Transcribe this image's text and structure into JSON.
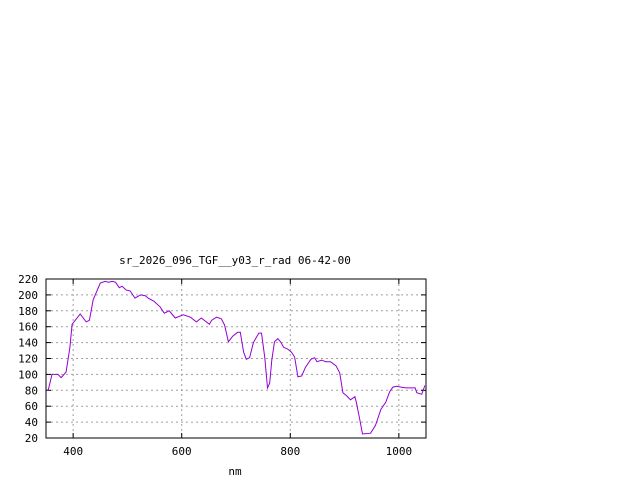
{
  "chart_data": {
    "type": "line",
    "title": "sr_2026_096_TGF__y03_r_rad 06-42-00",
    "xlabel": "nm",
    "ylabel": "",
    "xlim": [
      350,
      1050
    ],
    "ylim": [
      20,
      220
    ],
    "xticks": [
      400,
      600,
      800,
      1000
    ],
    "yticks": [
      20,
      40,
      60,
      80,
      100,
      120,
      140,
      160,
      180,
      200,
      220
    ],
    "grid": true,
    "line_color": "#9400d3",
    "series": [
      {
        "x": [
          350,
          354,
          361,
          372,
          378,
          387,
          394,
          398,
          413,
          424,
          430,
          437,
          450,
          459,
          465,
          472,
          478,
          485,
          490,
          498,
          505,
          514,
          524,
          533,
          538,
          549,
          560,
          568,
          577,
          588,
          603,
          616,
          627,
          636,
          651,
          655,
          664,
          673,
          679,
          686,
          694,
          703,
          708,
          714,
          719,
          725,
          732,
          742,
          747,
          753,
          758,
          762,
          766,
          771,
          777,
          782,
          788,
          795,
          802,
          808,
          814,
          821,
          828,
          838,
          845,
          849,
          858,
          865,
          874,
          884,
          891,
          897,
          904,
          911,
          919,
          922,
          928,
          933,
          948,
          957,
          967,
          976,
          983,
          989,
          996,
          1004,
          1013,
          1022,
          1030,
          1033,
          1042,
          1048
        ],
        "y": [
          80,
          80,
          100,
          100,
          96,
          103,
          134,
          163,
          176,
          166,
          168,
          194,
          215,
          217,
          216,
          217,
          216,
          209,
          211,
          206,
          205,
          196,
          200,
          199,
          196,
          192,
          185,
          177,
          180,
          171,
          175,
          172,
          166,
          171,
          163,
          168,
          172,
          170,
          162,
          141,
          148,
          153,
          153,
          128,
          119,
          121,
          140,
          152,
          152,
          121,
          83,
          89,
          118,
          141,
          145,
          141,
          134,
          132,
          128,
          122,
          97,
          98,
          109,
          119,
          121,
          116,
          118,
          116,
          116,
          111,
          102,
          77,
          73,
          68,
          72,
          64,
          43,
          25,
          26,
          36,
          56,
          65,
          78,
          84,
          85,
          84,
          83,
          83,
          83,
          77,
          75,
          86
        ]
      }
    ]
  }
}
